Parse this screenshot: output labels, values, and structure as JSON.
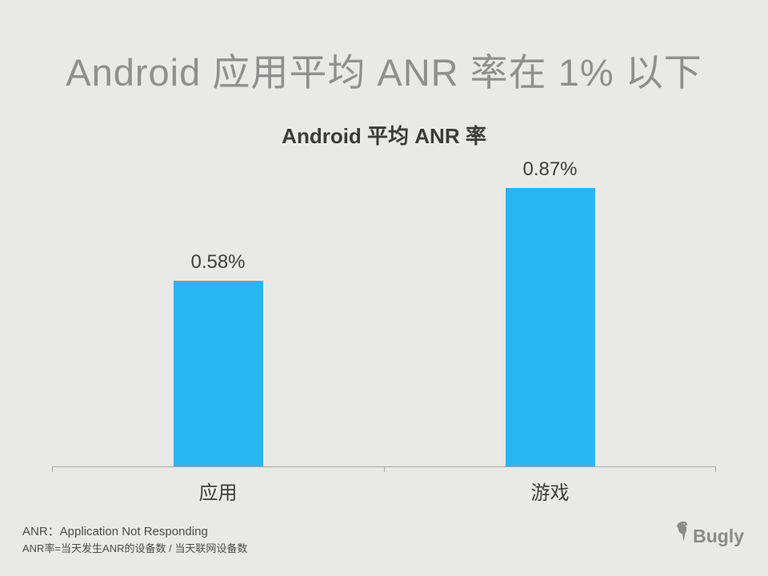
{
  "slide": {
    "title": "Android 应用平均 ANR 率在 1% 以下",
    "background_color": "#e9e9e7",
    "footer": {
      "line1": "ANR：Application Not Responding",
      "line2": "ANR率=当天发生ANR的设备数 / 当天联网设备数"
    },
    "logo": {
      "text": "Bugly",
      "icon": "bugly-bird-icon",
      "color": "#8b8b8b"
    }
  },
  "chart_data": {
    "type": "bar",
    "title": "Android 平均 ANR 率",
    "categories": [
      "应用",
      "游戏"
    ],
    "values": [
      0.58,
      0.87
    ],
    "value_labels": [
      "0.58%",
      "0.87%"
    ],
    "unit": "percent",
    "ylim": [
      0,
      1
    ],
    "bar_color": "#29b6f2",
    "grid": false,
    "legend": false,
    "xlabel": "",
    "ylabel": ""
  }
}
